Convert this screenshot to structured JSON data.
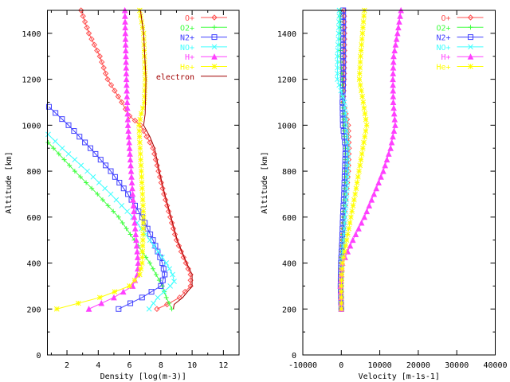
{
  "chart_data": [
    {
      "type": "line",
      "xlabel": "Density  [log(m-3)]",
      "ylabel": "Altitude [km]",
      "xlim": [
        0.75,
        13
      ],
      "ylim": [
        0,
        1500
      ],
      "xticks": [
        2,
        4,
        6,
        8,
        10,
        12
      ],
      "yticks": [
        0,
        200,
        400,
        600,
        800,
        1000,
        1200,
        1400
      ],
      "grid": false,
      "legend_position": "top-right",
      "series": [
        {
          "name": "O+",
          "color": "#ff5050",
          "marker": "diamond",
          "points": [
            [
              7.75,
              200
            ],
            [
              8.4,
              220
            ],
            [
              9.2,
              250
            ],
            [
              9.9,
              300
            ],
            [
              9.9,
              350
            ],
            [
              9.6,
              400
            ],
            [
              9.0,
              500
            ],
            [
              8.6,
              600
            ],
            [
              8.2,
              700
            ],
            [
              7.85,
              800
            ],
            [
              7.5,
              900
            ],
            [
              6.7,
              1000
            ],
            [
              6.0,
              1040
            ],
            [
              5.5,
              1100
            ],
            [
              4.6,
              1200
            ],
            [
              4.1,
              1300
            ],
            [
              3.4,
              1400
            ],
            [
              2.9,
              1500
            ]
          ]
        },
        {
          "name": "O2+",
          "color": "#40ff40",
          "marker": "plus",
          "points": [
            [
              8.7,
              200
            ],
            [
              8.35,
              250
            ],
            [
              8.1,
              300
            ],
            [
              7.3,
              400
            ],
            [
              6.3,
              500
            ],
            [
              5.3,
              600
            ],
            [
              3.95,
              700
            ],
            [
              2.5,
              800
            ],
            [
              0.8,
              925
            ]
          ]
        },
        {
          "name": "N2+",
          "color": "#4040ff",
          "marker": "square",
          "points": [
            [
              5.3,
              200
            ],
            [
              6.8,
              250
            ],
            [
              8.0,
              300
            ],
            [
              8.25,
              350
            ],
            [
              8.1,
              400
            ],
            [
              7.5,
              500
            ],
            [
              6.8,
              600
            ],
            [
              5.9,
              700
            ],
            [
              4.8,
              800
            ],
            [
              3.5,
              900
            ],
            [
              2.1,
              1000
            ],
            [
              0.85,
              1080
            ]
          ]
        },
        {
          "name": "NO+",
          "color": "#40ffff",
          "marker": "cross",
          "points": [
            [
              7.25,
              200
            ],
            [
              7.8,
              250
            ],
            [
              8.6,
              300
            ],
            [
              8.85,
              320
            ],
            [
              8.75,
              350
            ],
            [
              8.35,
              400
            ],
            [
              7.3,
              500
            ],
            [
              6.2,
              600
            ],
            [
              4.8,
              700
            ],
            [
              3.3,
              800
            ],
            [
              1.7,
              900
            ],
            [
              0.8,
              960
            ]
          ]
        },
        {
          "name": "H+",
          "color": "#ff40ff",
          "marker": "triangle",
          "points": [
            [
              3.4,
              200
            ],
            [
              5.0,
              250
            ],
            [
              6.2,
              300
            ],
            [
              6.5,
              350
            ],
            [
              6.55,
              400
            ],
            [
              6.3,
              600
            ],
            [
              6.1,
              800
            ],
            [
              5.9,
              1000
            ],
            [
              5.8,
              1200
            ],
            [
              5.7,
              1500
            ]
          ]
        },
        {
          "name": "He+",
          "color": "#ffff00",
          "marker": "star",
          "points": [
            [
              1.35,
              200
            ],
            [
              4.1,
              250
            ],
            [
              6.0,
              300
            ],
            [
              6.65,
              350
            ],
            [
              6.8,
              400
            ],
            [
              6.9,
              600
            ],
            [
              6.75,
              800
            ],
            [
              6.6,
              1000
            ],
            [
              6.75,
              1050
            ],
            [
              6.95,
              1100
            ],
            [
              7.0,
              1200
            ],
            [
              6.9,
              1400
            ],
            [
              6.65,
              1500
            ]
          ]
        },
        {
          "name": "electron",
          "color": "#a00000",
          "marker": "none",
          "points": [
            [
              8.8,
              200
            ],
            [
              8.85,
              220
            ],
            [
              9.4,
              250
            ],
            [
              10.0,
              300
            ],
            [
              10.0,
              350
            ],
            [
              9.65,
              400
            ],
            [
              9.05,
              500
            ],
            [
              8.65,
              600
            ],
            [
              8.25,
              700
            ],
            [
              7.9,
              800
            ],
            [
              7.6,
              900
            ],
            [
              7.3,
              950
            ],
            [
              6.9,
              1000
            ],
            [
              7.0,
              1050
            ],
            [
              7.05,
              1200
            ],
            [
              6.9,
              1400
            ],
            [
              6.7,
              1500
            ]
          ]
        }
      ]
    },
    {
      "type": "line",
      "xlabel": "Velocity  [m-1s-1]",
      "ylabel": "Altitude [km]",
      "xlim": [
        -10000,
        40000
      ],
      "ylim": [
        0,
        1500
      ],
      "xticks": [
        -10000,
        0,
        10000,
        20000,
        30000,
        40000
      ],
      "yticks": [
        0,
        200,
        400,
        600,
        800,
        1000,
        1200,
        1400
      ],
      "grid": false,
      "legend_position": "top-right",
      "series": [
        {
          "name": "O+",
          "color": "#ff5050",
          "marker": "diamond",
          "points": [
            [
              0,
              200
            ],
            [
              0,
              300
            ],
            [
              0,
              400
            ],
            [
              300,
              500
            ],
            [
              700,
              600
            ],
            [
              1300,
              700
            ],
            [
              1800,
              800
            ],
            [
              2000,
              900
            ],
            [
              1800,
              1000
            ],
            [
              500,
              1100
            ],
            [
              700,
              1200
            ],
            [
              800,
              1300
            ],
            [
              800,
              1400
            ],
            [
              700,
              1500
            ]
          ]
        },
        {
          "name": "O2+",
          "color": "#40ff40",
          "marker": "plus",
          "points": [
            [
              -100,
              200
            ],
            [
              0,
              300
            ],
            [
              0,
              400
            ],
            [
              200,
              500
            ],
            [
              500,
              600
            ],
            [
              800,
              700
            ],
            [
              1000,
              800
            ],
            [
              1000,
              900
            ],
            [
              700,
              1000
            ],
            [
              400,
              1100
            ],
            [
              200,
              1200
            ],
            [
              -200,
              1300
            ],
            [
              -300,
              1400
            ],
            [
              -300,
              1500
            ]
          ]
        },
        {
          "name": "N2+",
          "color": "#4040ff",
          "marker": "square",
          "points": [
            [
              0,
              200
            ],
            [
              -200,
              300
            ],
            [
              -100,
              400
            ],
            [
              200,
              500
            ],
            [
              400,
              600
            ],
            [
              700,
              700
            ],
            [
              900,
              800
            ],
            [
              1100,
              900
            ],
            [
              400,
              1000
            ],
            [
              300,
              1100
            ],
            [
              500,
              1200
            ],
            [
              500,
              1300
            ],
            [
              500,
              1400
            ],
            [
              500,
              1500
            ]
          ]
        },
        {
          "name": "NO+",
          "color": "#40ffff",
          "marker": "cross",
          "points": [
            [
              0,
              200
            ],
            [
              0,
              300
            ],
            [
              100,
              400
            ],
            [
              600,
              500
            ],
            [
              1000,
              600
            ],
            [
              1400,
              700
            ],
            [
              1700,
              800
            ],
            [
              1800,
              900
            ],
            [
              1400,
              1000
            ],
            [
              800,
              1100
            ],
            [
              -1000,
              1200
            ],
            [
              -1000,
              1300
            ],
            [
              -700,
              1400
            ],
            [
              -500,
              1500
            ]
          ]
        },
        {
          "name": "H+",
          "color": "#ff40ff",
          "marker": "triangle",
          "points": [
            [
              0,
              200
            ],
            [
              -200,
              300
            ],
            [
              300,
              400
            ],
            [
              3000,
              500
            ],
            [
              6000,
              600
            ],
            [
              8500,
              700
            ],
            [
              10900,
              800
            ],
            [
              12800,
              900
            ],
            [
              14000,
              1000
            ],
            [
              13500,
              1100
            ],
            [
              13400,
              1200
            ],
            [
              13600,
              1300
            ],
            [
              14600,
              1400
            ],
            [
              15500,
              1500
            ]
          ]
        },
        {
          "name": "He+",
          "color": "#ffff00",
          "marker": "star",
          "points": [
            [
              0,
              200
            ],
            [
              0,
              300
            ],
            [
              300,
              400
            ],
            [
              1400,
              500
            ],
            [
              2500,
              600
            ],
            [
              3600,
              700
            ],
            [
              4600,
              800
            ],
            [
              5600,
              900
            ],
            [
              6600,
              1000
            ],
            [
              5700,
              1100
            ],
            [
              4700,
              1200
            ],
            [
              5000,
              1300
            ],
            [
              5500,
              1400
            ],
            [
              6000,
              1500
            ]
          ]
        }
      ]
    }
  ]
}
